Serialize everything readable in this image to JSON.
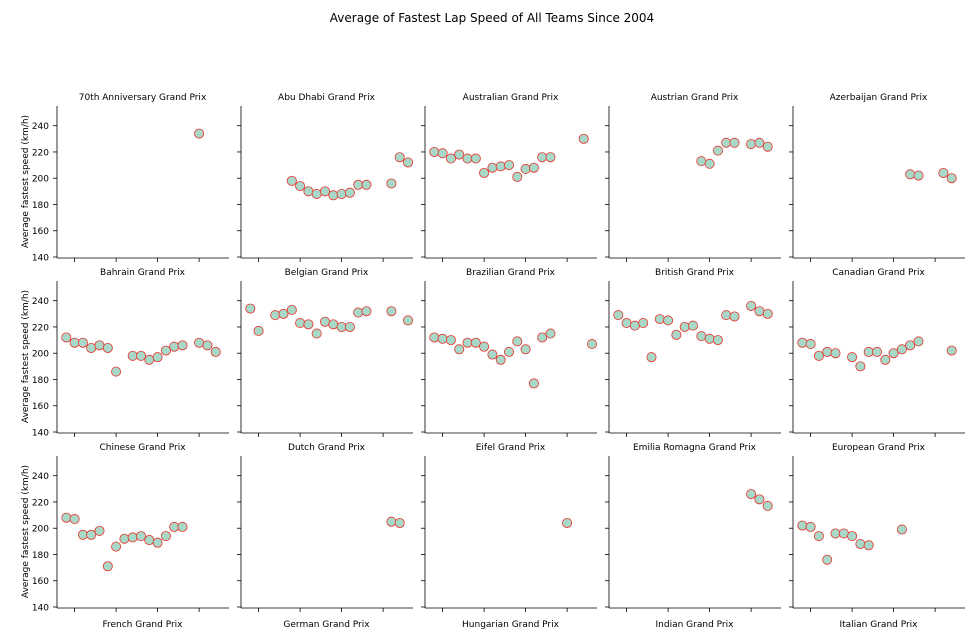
{
  "chart_data": {
    "type": "scatter",
    "title": "Average of Fastest Lap Speed of All Teams Since 2004",
    "ylabel": "Average fastest speed (km/h)",
    "xlabel": "",
    "ylim": [
      140,
      255
    ],
    "yticks": [
      140,
      160,
      180,
      200,
      220,
      240
    ],
    "xlim": [
      2003,
      2023
    ],
    "marker_color": "#a8d8c8",
    "marker_edge_color": "#e8322b",
    "grid": false,
    "panels": [
      {
        "title": "70th Anniversary Grand Prix",
        "x": [
          2020
        ],
        "y": [
          234
        ]
      },
      {
        "title": "Abu Dhabi Grand Prix",
        "x": [
          2009,
          2010,
          2011,
          2012,
          2013,
          2014,
          2015,
          2016,
          2017,
          2018,
          2019,
          2021,
          2022,
          2023
        ],
        "y": [
          198,
          194,
          190,
          188,
          190,
          187,
          188,
          189,
          195,
          195,
          null,
          196,
          216,
          212
        ]
      },
      {
        "title": "Australian Grand Prix",
        "x": [
          2004,
          2005,
          2006,
          2007,
          2008,
          2009,
          2010,
          2011,
          2012,
          2013,
          2014,
          2015,
          2016,
          2017,
          2018,
          2019,
          2022
        ],
        "y": [
          220,
          219,
          215,
          218,
          215,
          215,
          204,
          208,
          209,
          210,
          201,
          207,
          208,
          216,
          216,
          null,
          230
        ]
      },
      {
        "title": "Austrian Grand Prix",
        "x": [
          2014,
          2015,
          2016,
          2017,
          2018,
          2020,
          2021,
          2022
        ],
        "y": [
          213,
          211,
          221,
          227,
          227,
          226,
          227,
          224
        ]
      },
      {
        "title": "Azerbaijan Grand Prix",
        "x": [
          2017,
          2018,
          2021,
          2022
        ],
        "y": [
          203,
          202,
          204,
          200
        ]
      },
      {
        "title": "Bahrain Grand Prix",
        "x": [
          2004,
          2005,
          2006,
          2007,
          2008,
          2009,
          2010,
          2012,
          2013,
          2014,
          2015,
          2016,
          2017,
          2018,
          2020,
          2021,
          2022
        ],
        "y": [
          212,
          208,
          208,
          204,
          206,
          204,
          186,
          198,
          198,
          195,
          197,
          202,
          205,
          206,
          208,
          206,
          201
        ]
      },
      {
        "title": "Belgian Grand Prix",
        "x": [
          2004,
          2005,
          2007,
          2008,
          2009,
          2010,
          2011,
          2012,
          2013,
          2014,
          2015,
          2016,
          2017,
          2018,
          2019,
          2021,
          2023
        ],
        "y": [
          234,
          217,
          229,
          230,
          233,
          223,
          222,
          215,
          224,
          222,
          220,
          220,
          231,
          232,
          null,
          232,
          225
        ]
      },
      {
        "title": "Brazilian Grand Prix",
        "x": [
          2004,
          2005,
          2006,
          2007,
          2008,
          2009,
          2010,
          2011,
          2012,
          2013,
          2014,
          2015,
          2016,
          2017,
          2018,
          2019,
          2023
        ],
        "y": [
          212,
          211,
          210,
          203,
          208,
          208,
          205,
          199,
          195,
          201,
          209,
          203,
          177,
          212,
          215,
          null,
          207
        ]
      },
      {
        "title": "British Grand Prix",
        "x": [
          2004,
          2005,
          2006,
          2007,
          2008,
          2009,
          2010,
          2011,
          2012,
          2013,
          2014,
          2015,
          2016,
          2017,
          2018,
          2019,
          2020,
          2021,
          2022
        ],
        "y": [
          229,
          223,
          221,
          223,
          197,
          226,
          225,
          214,
          220,
          221,
          213,
          211,
          210,
          229,
          228,
          null,
          236,
          232,
          230
        ]
      },
      {
        "title": "Canadian Grand Prix",
        "x": [
          2004,
          2005,
          2006,
          2007,
          2008,
          2010,
          2011,
          2012,
          2013,
          2014,
          2015,
          2016,
          2017,
          2018,
          2022
        ],
        "y": [
          208,
          207,
          198,
          201,
          200,
          197,
          190,
          201,
          201,
          195,
          200,
          203,
          206,
          209,
          202
        ]
      },
      {
        "title": "Chinese Grand Prix",
        "x": [
          2004,
          2005,
          2006,
          2007,
          2008,
          2009,
          2010,
          2011,
          2012,
          2013,
          2014,
          2015,
          2016,
          2017,
          2018
        ],
        "y": [
          208,
          207,
          195,
          195,
          198,
          171,
          186,
          192,
          193,
          194,
          191,
          189,
          194,
          201,
          201
        ]
      },
      {
        "title": "Dutch Grand Prix",
        "x": [
          2021,
          2022
        ],
        "y": [
          205,
          204
        ]
      },
      {
        "title": "Eifel Grand Prix",
        "x": [
          2020
        ],
        "y": [
          204
        ]
      },
      {
        "title": "Emilia Romagna Grand Prix",
        "x": [
          2020,
          2021,
          2022
        ],
        "y": [
          226,
          222,
          217
        ]
      },
      {
        "title": "European Grand Prix",
        "x": [
          2004,
          2005,
          2006,
          2007,
          2008,
          2009,
          2010,
          2011,
          2012,
          2016
        ],
        "y": [
          202,
          201,
          194,
          176,
          196,
          196,
          194,
          188,
          187,
          199
        ]
      }
    ],
    "bottom_labels": [
      "French Grand Prix",
      "German Grand Prix",
      "Hungarian Grand Prix",
      "Indian Grand Prix",
      "Italian Grand Prix"
    ]
  }
}
